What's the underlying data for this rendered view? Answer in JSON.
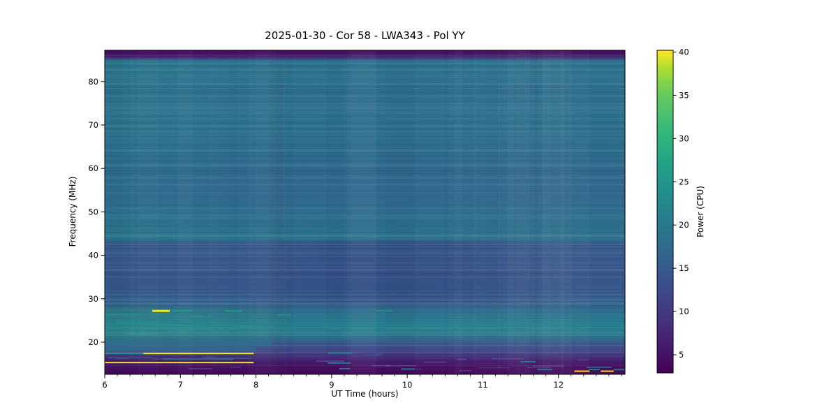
{
  "figure": {
    "background_color": "#ffffff",
    "frame_color": "#000000",
    "text_color": "#000000"
  },
  "chart_data": {
    "type": "heatmap",
    "subtype": "dynamic-spectrum",
    "title": "2025-01-30 - Cor 58 - LWA343 - Pol YY",
    "xlabel": "UT Time (hours)",
    "ylabel": "Frequency (MHz)",
    "x_range": [
      6.0,
      12.88
    ],
    "y_range": [
      12.6,
      87.2
    ],
    "x_ticks": [
      6,
      7,
      8,
      9,
      10,
      11,
      12
    ],
    "x_minor_tick_interval": 0.16667,
    "y_ticks": [
      20,
      30,
      40,
      50,
      60,
      70,
      80
    ],
    "grid": false,
    "colormap": "viridis",
    "colorbar": {
      "label": "Power (CPU)",
      "ticks": [
        5,
        10,
        15,
        20,
        25,
        30,
        35,
        40
      ],
      "range": [
        2.9,
        40.2
      ],
      "position": "right"
    },
    "freq_profile": [
      [
        87.2,
        4.2
      ],
      [
        86.5,
        4.8
      ],
      [
        85.8,
        6.5
      ],
      [
        85.2,
        11.0
      ],
      [
        84.8,
        19.5
      ],
      [
        84.2,
        19.2
      ],
      [
        82.0,
        19.2
      ],
      [
        79.0,
        18.8
      ],
      [
        76.0,
        18.4
      ],
      [
        73.0,
        18.8
      ],
      [
        70.0,
        19.0
      ],
      [
        67.0,
        18.4
      ],
      [
        64.0,
        18.2
      ],
      [
        61.0,
        17.8
      ],
      [
        58.0,
        17.4
      ],
      [
        55.0,
        17.2
      ],
      [
        52.0,
        17.6
      ],
      [
        49.0,
        18.2
      ],
      [
        46.5,
        18.8
      ],
      [
        44.5,
        19.3
      ],
      [
        43.6,
        19.3
      ],
      [
        43.2,
        15.6
      ],
      [
        42.0,
        15.0
      ],
      [
        40.0,
        14.6
      ],
      [
        37.0,
        14.3
      ],
      [
        34.0,
        14.3
      ],
      [
        31.5,
        14.8
      ],
      [
        29.5,
        15.6
      ],
      [
        28.6,
        16.4
      ],
      [
        27.8,
        17.5
      ],
      [
        26.8,
        18.6
      ],
      [
        25.8,
        19.4
      ],
      [
        24.8,
        20.4
      ],
      [
        23.8,
        21.0
      ],
      [
        22.8,
        21.0
      ],
      [
        22.0,
        20.2
      ],
      [
        21.3,
        19.0
      ],
      [
        20.6,
        17.0
      ],
      [
        19.8,
        14.6
      ],
      [
        19.0,
        13.0
      ],
      [
        18.3,
        12.0
      ],
      [
        17.6,
        11.0
      ],
      [
        17.0,
        9.6
      ],
      [
        16.4,
        8.2
      ],
      [
        15.8,
        6.8
      ],
      [
        15.1,
        5.6
      ],
      [
        14.3,
        4.8
      ],
      [
        13.4,
        4.2
      ],
      [
        12.6,
        4.0
      ]
    ],
    "overlays": [
      {
        "name": "mid-band-darkening",
        "t": [
          7.8,
          12.2
        ],
        "f": [
          28.6,
          43.4
        ],
        "color": "#283d78",
        "alpha": [
          [
            0,
            0
          ],
          [
            0.3,
            0.28
          ],
          [
            0.65,
            0.26
          ],
          [
            1,
            0
          ]
        ]
      },
      {
        "name": "upper-band-right-dim",
        "t": [
          7.3,
          12.88
        ],
        "f": [
          43.5,
          86.0
        ],
        "color": "#2a5e86",
        "alpha": [
          [
            0,
            0
          ],
          [
            0.5,
            0.13
          ],
          [
            1,
            0.1
          ]
        ]
      },
      {
        "name": "lower-left-green-enhancement",
        "t": [
          6.0,
          8.45
        ],
        "f": [
          17.1,
          28.2
        ],
        "color": "#43c07e",
        "alpha": [
          [
            0,
            0.13
          ],
          [
            0.55,
            0.09
          ],
          [
            1,
            0
          ]
        ]
      },
      {
        "name": "upper-left-green-tint",
        "t": [
          6.0,
          7.8
        ],
        "f": [
          44.0,
          85.5
        ],
        "color": "#35b28b",
        "alpha": [
          [
            0,
            0.06
          ],
          [
            1,
            0
          ]
        ]
      }
    ],
    "features": [
      {
        "type": "band",
        "t": [
          6.0,
          8.2
        ],
        "f": 19.9,
        "p": 18.5,
        "h": 8
      },
      {
        "type": "band",
        "t": [
          6.0,
          8.0
        ],
        "f": 18.4,
        "p": 18.0,
        "h": 7
      },
      {
        "type": "burst",
        "t": [
          6.63,
          6.86
        ],
        "f": 27.2,
        "p": 40,
        "h": 3
      },
      {
        "type": "burst",
        "t": [
          6.9,
          7.16
        ],
        "f": 27.2,
        "p": 26,
        "h": 2
      },
      {
        "type": "burst",
        "t": [
          7.6,
          7.82
        ],
        "f": 27.2,
        "p": 26,
        "h": 2
      },
      {
        "type": "burst",
        "t": [
          8.28,
          8.46
        ],
        "f": 26.3,
        "p": 24,
        "h": 2
      },
      {
        "type": "burst",
        "t": [
          9.58,
          9.8
        ],
        "f": 27.2,
        "p": 23,
        "h": 2
      },
      {
        "type": "burst",
        "t": [
          6.0,
          6.75
        ],
        "f": 26.4,
        "p": 23,
        "h": 2
      },
      {
        "type": "burst",
        "t": [
          6.15,
          6.73
        ],
        "f": 24.4,
        "p": 24,
        "h": 2
      },
      {
        "type": "burst",
        "t": [
          6.8,
          7.35
        ],
        "f": 24.3,
        "p": 22,
        "h": 2
      },
      {
        "type": "rfi-line",
        "t": [
          6.51,
          7.97
        ],
        "f": 17.4,
        "p": 40,
        "h": 2
      },
      {
        "type": "rfi-line",
        "t": [
          6.0,
          6.51
        ],
        "f": 17.4,
        "p": 24,
        "h": 2
      },
      {
        "type": "rfi-line",
        "t": [
          6.0,
          7.97
        ],
        "f": 15.3,
        "p": 40,
        "h": 2
      },
      {
        "type": "patch",
        "t": [
          6.05,
          6.62
        ],
        "f": 16.4,
        "p": 13,
        "h": 2
      },
      {
        "type": "patch",
        "t": [
          6.62,
          7.05
        ],
        "f": 16.1,
        "p": 12,
        "h": 2
      },
      {
        "type": "patch",
        "t": [
          7.35,
          7.95
        ],
        "f": 16.3,
        "p": 12,
        "h": 2
      },
      {
        "type": "burst",
        "t": [
          6.77,
          7.7
        ],
        "f": 16.1,
        "p": 17,
        "h": 2
      },
      {
        "type": "burst",
        "t": [
          8.95,
          9.27
        ],
        "f": 17.5,
        "p": 22,
        "h": 2
      },
      {
        "type": "burst",
        "t": [
          8.95,
          9.25
        ],
        "f": 15.2,
        "p": 20,
        "h": 2
      },
      {
        "type": "burst",
        "t": [
          9.1,
          9.25
        ],
        "f": 13.9,
        "p": 19,
        "h": 2
      },
      {
        "type": "burst",
        "t": [
          9.92,
          10.1
        ],
        "f": 13.8,
        "p": 19,
        "h": 2
      },
      {
        "type": "patch",
        "t": [
          9.42,
          9.67
        ],
        "f": 17.2,
        "p": 12,
        "h": 5
      },
      {
        "type": "burst",
        "t": [
          11.5,
          11.7
        ],
        "f": 15.5,
        "p": 20,
        "h": 2
      },
      {
        "type": "burst",
        "t": [
          11.72,
          11.92
        ],
        "f": 13.7,
        "p": 19,
        "h": 2
      },
      {
        "type": "burst",
        "t": [
          12.4,
          12.55
        ],
        "f": 13.7,
        "p": 19,
        "h": 2
      },
      {
        "type": "burst",
        "t": [
          12.73,
          12.87
        ],
        "f": 13.7,
        "p": 19,
        "h": 2
      },
      {
        "type": "patch",
        "t": [
          12.37,
          12.7
        ],
        "f": 14.2,
        "p": 14,
        "h": 2
      },
      {
        "type": "rfi-line",
        "t": [
          12.21,
          12.41
        ],
        "f": 13.3,
        "p": 37,
        "h": 2.5,
        "color": "#eaa23e"
      },
      {
        "type": "rfi-line",
        "t": [
          12.56,
          12.73
        ],
        "f": 13.3,
        "p": 37,
        "h": 2.5,
        "color": "#eaa23e"
      }
    ]
  }
}
